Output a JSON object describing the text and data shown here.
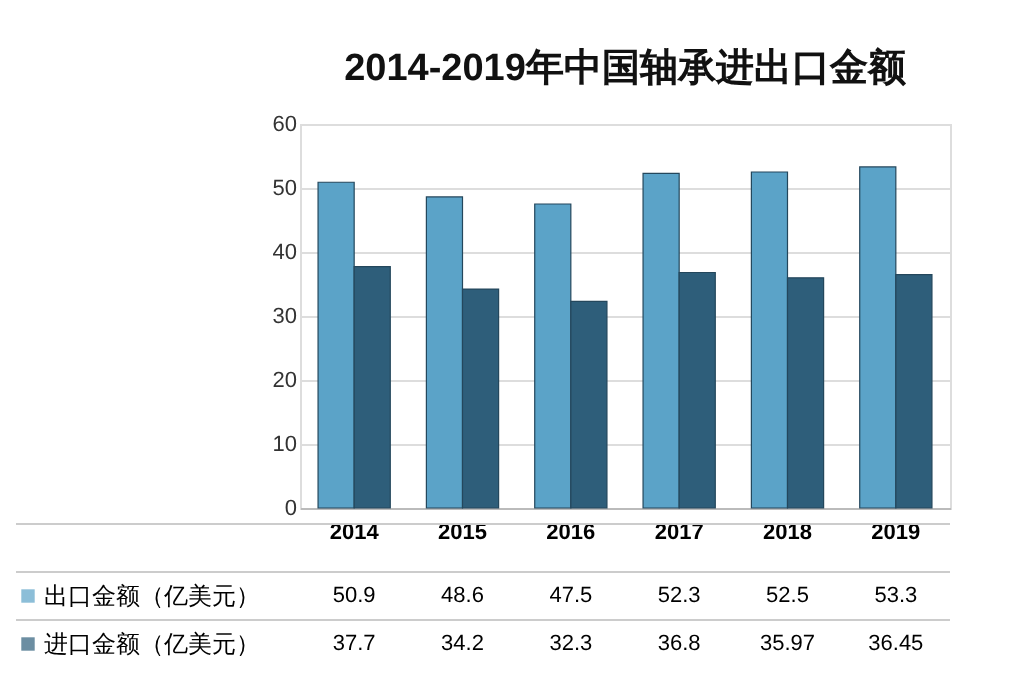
{
  "chart_data": {
    "type": "bar",
    "title": "2014-2019年中国轴承进出口金额",
    "categories": [
      "2014",
      "2015",
      "2016",
      "2017",
      "2018",
      "2019"
    ],
    "series": [
      {
        "name": "出口金额（亿美元）",
        "color": "#5ba3c8",
        "values": [
          50.9,
          48.6,
          47.5,
          52.3,
          52.5,
          53.3
        ]
      },
      {
        "name": "进口金额（亿美元）",
        "color": "#2e5e7a",
        "values": [
          37.7,
          34.2,
          32.3,
          36.8,
          35.97,
          36.45
        ]
      }
    ],
    "ylim": [
      0,
      60
    ],
    "yticks": [
      0,
      10,
      20,
      30,
      40,
      50,
      60
    ],
    "grid": "y",
    "legend": "bottom",
    "data_labels": true
  }
}
